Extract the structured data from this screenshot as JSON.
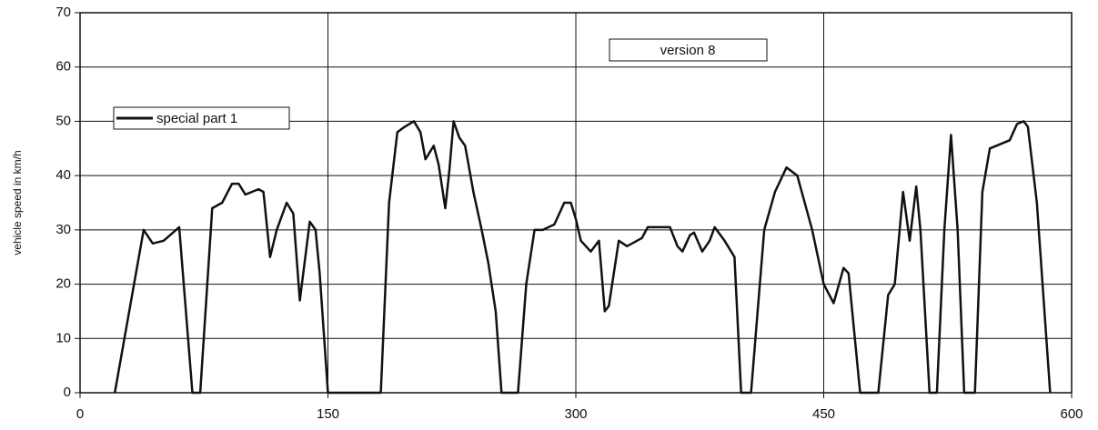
{
  "chart_data": {
    "type": "line",
    "annotation": "version 8",
    "ylabel": "vehicle speed in km/h",
    "x": [
      21,
      38.5,
      44,
      50.6,
      60,
      68,
      72.7,
      80,
      86,
      92,
      96,
      100,
      108,
      111,
      115,
      119,
      125,
      129,
      133,
      139,
      142.5,
      145,
      150,
      182,
      187,
      192,
      196.5,
      202,
      206,
      209,
      214,
      217,
      221,
      223.5,
      226,
      229.5,
      233,
      238,
      243,
      247,
      251.5,
      255,
      265,
      270,
      275,
      280,
      287,
      293,
      297,
      300,
      303,
      309,
      314,
      317.5,
      320,
      326,
      331,
      340,
      343.5,
      357,
      361.5,
      364.5,
      369,
      371.5,
      376.5,
      381,
      384,
      390,
      396,
      400,
      406,
      414,
      420.5,
      427.5,
      434,
      443,
      450,
      456,
      462,
      465,
      472,
      483,
      489,
      493,
      498,
      502,
      506,
      508.5,
      514,
      518.5,
      523,
      527,
      531,
      535,
      541.5,
      546,
      550.5,
      562.5,
      567,
      571,
      573.5,
      579,
      587
    ],
    "series": [
      {
        "name": "special part 1",
        "color": "#111111",
        "values": [
          0,
          30,
          27.5,
          28,
          30.5,
          0,
          0,
          34,
          35,
          38.5,
          38.5,
          36.5,
          37.5,
          37,
          25,
          30,
          35,
          33,
          17,
          31.5,
          30,
          22,
          0,
          0,
          35,
          48,
          49,
          50,
          48,
          43,
          45.5,
          42,
          34,
          41,
          50,
          47,
          45.5,
          37,
          30,
          24,
          15,
          0,
          0,
          20,
          30,
          30,
          31,
          35,
          35,
          32,
          28,
          26,
          28,
          15,
          16,
          28,
          27,
          28.5,
          30.5,
          30.5,
          27,
          26,
          29,
          29.5,
          26,
          28,
          30.5,
          28,
          25,
          0,
          0,
          30,
          37,
          41.5,
          40,
          30,
          20,
          16.5,
          23,
          22,
          0,
          0,
          18,
          20,
          37,
          28,
          38,
          30,
          0,
          0,
          30,
          47.5,
          30,
          0,
          0,
          37,
          45,
          46.5,
          49.5,
          50,
          49,
          35,
          0
        ]
      }
    ],
    "xlim": [
      0,
      600
    ],
    "xticks": [
      0,
      150,
      300,
      450,
      600
    ],
    "ylim": [
      0,
      70
    ],
    "yticks": [
      0,
      10,
      20,
      30,
      40,
      50,
      60,
      70
    ],
    "grid": true,
    "legend": "upper left"
  }
}
